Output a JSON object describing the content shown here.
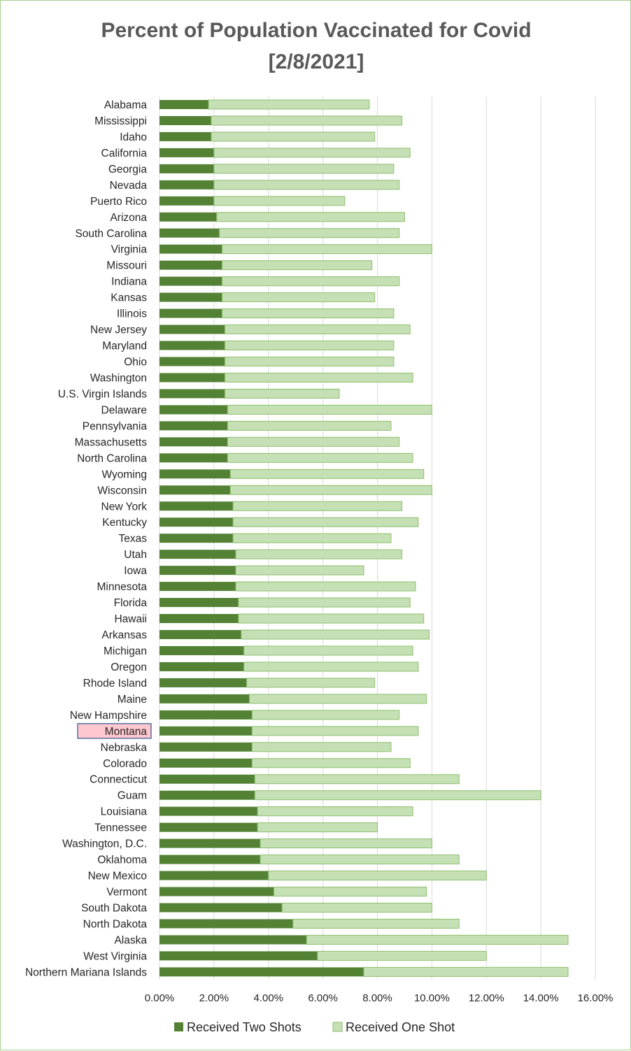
{
  "chart_data": {
    "type": "bar",
    "orientation": "horizontal",
    "stacked": true,
    "title": "Percent of Population Vaccinated for Covid",
    "subtitle": "[2/8/2021]",
    "categories": [
      "Alabama",
      "Mississippi",
      "Idaho",
      "California",
      "Georgia",
      "Nevada",
      "Puerto Rico",
      "Arizona",
      "South Carolina",
      "Virginia",
      "Missouri",
      "Indiana",
      "Kansas",
      "Illinois",
      "New Jersey",
      "Maryland",
      "Ohio",
      "Washington",
      "U.S. Virgin Islands",
      "Delaware",
      "Pennsylvania",
      "Massachusetts",
      "North Carolina",
      "Wyoming",
      "Wisconsin",
      "New York",
      "Kentucky",
      "Texas",
      "Utah",
      "Iowa",
      "Minnesota",
      "Florida",
      "Hawaii",
      "Arkansas",
      "Michigan",
      "Oregon",
      "Rhode Island",
      "Maine",
      "New Hampshire",
      "Montana",
      "Nebraska",
      "Colorado",
      "Connecticut",
      "Guam",
      "Louisiana",
      "Tennessee",
      "Washington, D.C.",
      "Oklahoma",
      "New Mexico",
      "Vermont",
      "South Dakota",
      "North Dakota",
      "Alaska",
      "West Virginia",
      "Northern Mariana Islands"
    ],
    "highlighted_category": "Montana",
    "series": [
      {
        "name": "Received Two Shots",
        "color": "#548235",
        "values": [
          1.8,
          1.9,
          1.9,
          2.0,
          2.0,
          2.0,
          2.0,
          2.1,
          2.2,
          2.3,
          2.3,
          2.3,
          2.3,
          2.3,
          2.4,
          2.4,
          2.4,
          2.4,
          2.4,
          2.5,
          2.5,
          2.5,
          2.5,
          2.6,
          2.6,
          2.7,
          2.7,
          2.7,
          2.8,
          2.8,
          2.8,
          2.9,
          2.9,
          3.0,
          3.1,
          3.1,
          3.2,
          3.3,
          3.4,
          3.4,
          3.4,
          3.4,
          3.5,
          3.5,
          3.6,
          3.6,
          3.7,
          3.7,
          4.0,
          4.2,
          4.5,
          4.9,
          5.4,
          5.8,
          7.5
        ]
      },
      {
        "name": "Received One Shot",
        "color": "#c5e0b4",
        "values": [
          5.9,
          7.0,
          6.0,
          7.2,
          6.6,
          6.8,
          4.8,
          6.9,
          6.6,
          7.7,
          5.5,
          6.5,
          5.6,
          6.3,
          6.8,
          6.2,
          6.2,
          6.9,
          4.2,
          7.5,
          6.0,
          6.3,
          6.8,
          7.1,
          7.4,
          6.2,
          6.8,
          5.8,
          6.1,
          4.7,
          6.6,
          6.3,
          6.8,
          6.9,
          6.2,
          6.4,
          4.7,
          6.5,
          5.4,
          6.1,
          5.1,
          5.8,
          7.5,
          10.5,
          5.7,
          4.4,
          6.3,
          7.3,
          8.0,
          5.6,
          5.5,
          6.1,
          9.6,
          6.2,
          7.5
        ]
      }
    ],
    "xlim": [
      0,
      16
    ],
    "x_ticks": [
      "0.00%",
      "2.00%",
      "4.00%",
      "6.00%",
      "8.00%",
      "10.00%",
      "12.00%",
      "14.00%",
      "16.00%"
    ],
    "x_tick_values": [
      0,
      2,
      4,
      6,
      8,
      10,
      12,
      14,
      16
    ],
    "grid": true,
    "legend_position": "bottom",
    "colors": {
      "grid": "#d9d9d9",
      "border": "#a8d08d",
      "highlight_fill": "#ffc7ce",
      "highlight_border": "#2f5597",
      "bar_outline_light": "#8fbf6f"
    }
  }
}
